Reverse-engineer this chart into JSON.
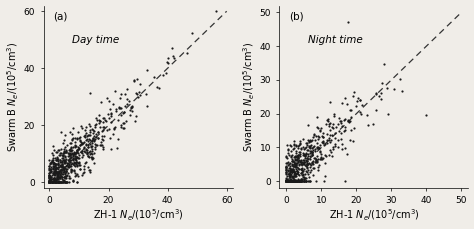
{
  "panel_a": {
    "label": "(a)",
    "annotation": "Day time",
    "xlim": [
      -2,
      62
    ],
    "ylim": [
      -2,
      62
    ],
    "xticks": [
      0,
      20,
      40,
      60
    ],
    "yticks": [
      0,
      20,
      40,
      60
    ],
    "xlabel": "ZH-1 $N_e$/(10$^5$/cm$^3$)",
    "ylabel": "Swarm B $N_e$/(10$^5$/cm$^3$)"
  },
  "panel_b": {
    "label": "(b)",
    "annotation": "Night time",
    "xlim": [
      -2,
      52
    ],
    "ylim": [
      -2,
      52
    ],
    "xticks": [
      0,
      10,
      20,
      30,
      40,
      50
    ],
    "yticks": [
      0,
      10,
      20,
      30,
      40,
      50
    ],
    "xlabel": "ZH-1 $N_e$/(10$^5$/cm$^3$)",
    "ylabel": "Swarm B $N_e$/(10$^5$/cm$^3$)"
  },
  "marker_size": 2.5,
  "marker_color": "#1a1a1a",
  "dashed_line_color": "#333333",
  "background_color": "#f0ede8",
  "tick_fontsize": 6.5,
  "label_fontsize": 7,
  "annotation_fontsize": 7.5
}
